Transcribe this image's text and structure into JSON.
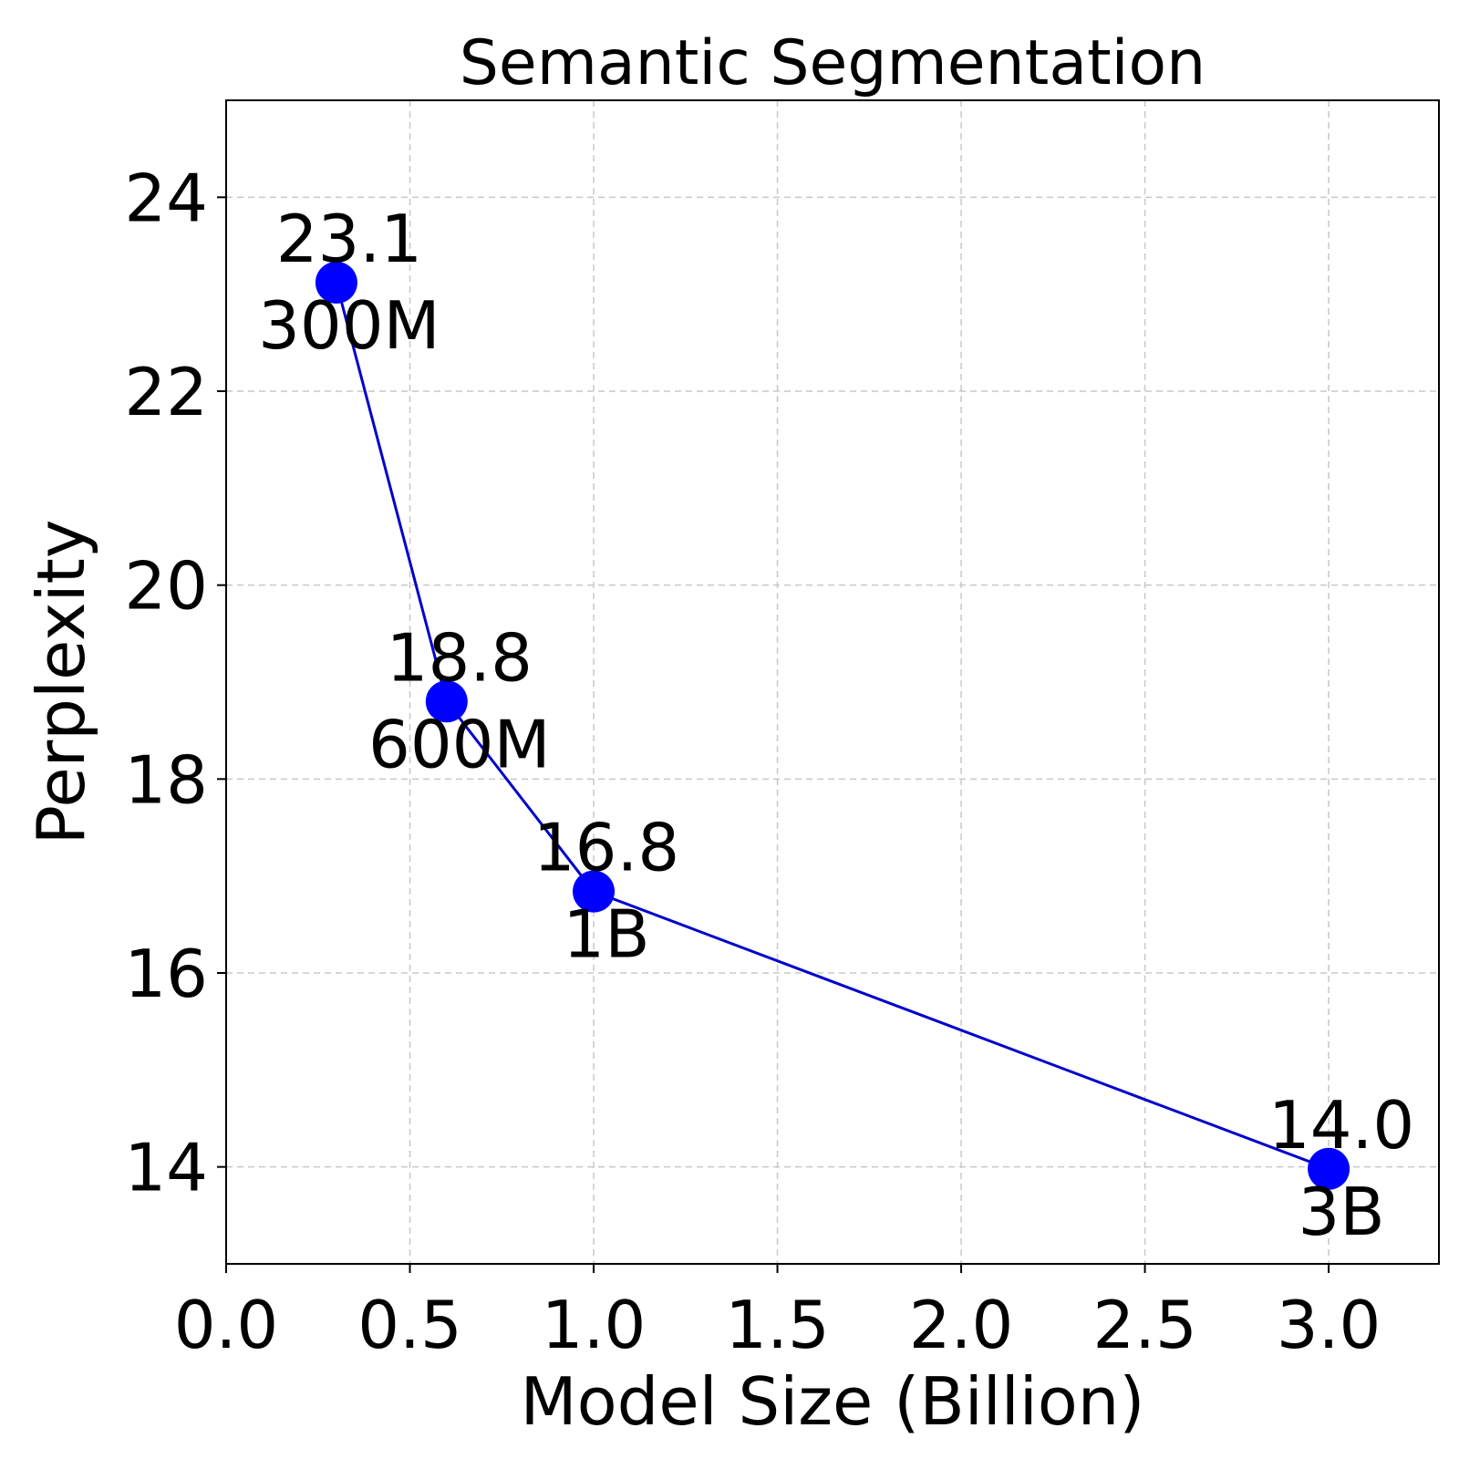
{
  "chart_data": {
    "type": "line",
    "title": "Semantic Segmentation",
    "xlabel": "Model Size (Billion)",
    "ylabel": "Perplexity",
    "xlim": [
      0.0,
      3.3
    ],
    "ylim": [
      13.0,
      25.0
    ],
    "xticks": [
      0.0,
      0.5,
      1.0,
      1.5,
      2.0,
      2.5,
      3.0
    ],
    "xtick_labels": [
      "0.0",
      "0.5",
      "1.0",
      "1.5",
      "2.0",
      "2.5",
      "3.0"
    ],
    "yticks": [
      14,
      16,
      18,
      20,
      22,
      24
    ],
    "ytick_labels": [
      "14",
      "16",
      "18",
      "20",
      "22",
      "24"
    ],
    "grid": true,
    "color": "#0000ff",
    "line_color": "#0000cc",
    "points": [
      {
        "x": 0.3,
        "y": 23.12,
        "value_label": "23.1",
        "size_label": "300M"
      },
      {
        "x": 0.6,
        "y": 18.8,
        "value_label": "18.8",
        "size_label": "600M"
      },
      {
        "x": 1.0,
        "y": 16.84,
        "value_label": "16.8",
        "size_label": "1B"
      },
      {
        "x": 3.0,
        "y": 13.98,
        "value_label": "14.0",
        "size_label": "3B"
      }
    ]
  }
}
